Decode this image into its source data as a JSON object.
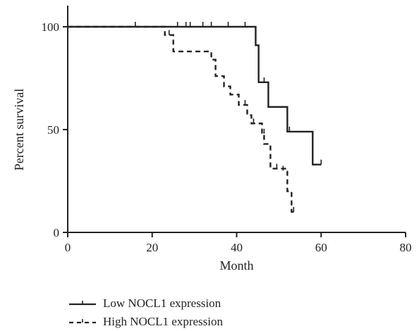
{
  "chart_data": {
    "type": "line",
    "chart_style": "kaplan-meier step survival curve",
    "title": "",
    "xlabel": "Month",
    "ylabel": "Percent survival",
    "xlim": [
      0,
      80
    ],
    "ylim": [
      0,
      100
    ],
    "x_ticks": [
      0,
      20,
      40,
      60,
      80
    ],
    "y_ticks": [
      0,
      50,
      100
    ],
    "grid": false,
    "legend_position": "bottom-left, below plot",
    "series": [
      {
        "name": "Low NOCL1 expression",
        "line_style": "solid",
        "color": "#222222",
        "steps": [
          [
            0,
            100
          ],
          [
            44.5,
            100
          ],
          [
            44.5,
            91
          ],
          [
            45.2,
            91
          ],
          [
            45.2,
            73
          ],
          [
            47.5,
            73
          ],
          [
            47.5,
            61
          ],
          [
            52,
            61
          ],
          [
            52,
            49
          ],
          [
            58,
            49
          ],
          [
            58,
            33
          ],
          [
            60,
            33
          ]
        ],
        "censored": [
          [
            16,
            100
          ],
          [
            26,
            100
          ],
          [
            28,
            100
          ],
          [
            29,
            100
          ],
          [
            32,
            100
          ],
          [
            34,
            100
          ],
          [
            38,
            100
          ],
          [
            42,
            100
          ],
          [
            46.5,
            73
          ],
          [
            52.5,
            49
          ],
          [
            60,
            33
          ]
        ]
      },
      {
        "name": "High NOCL1 expression",
        "line_style": "dashed",
        "color": "#222222",
        "steps": [
          [
            0,
            100
          ],
          [
            23,
            100
          ],
          [
            23,
            96
          ],
          [
            25,
            96
          ],
          [
            25,
            88
          ],
          [
            34,
            88
          ],
          [
            34,
            84
          ],
          [
            35,
            84
          ],
          [
            35,
            76
          ],
          [
            37,
            76
          ],
          [
            37,
            71
          ],
          [
            38.5,
            71
          ],
          [
            38.5,
            67
          ],
          [
            40.5,
            67
          ],
          [
            40.5,
            62
          ],
          [
            42.5,
            62
          ],
          [
            42.5,
            57
          ],
          [
            43.5,
            57
          ],
          [
            43.5,
            53
          ],
          [
            46,
            53
          ],
          [
            46,
            48
          ],
          [
            46.5,
            48
          ],
          [
            46.5,
            43
          ],
          [
            48,
            43
          ],
          [
            48,
            31
          ],
          [
            51.5,
            31
          ],
          [
            51.5,
            30
          ],
          [
            52,
            30
          ],
          [
            52,
            20
          ],
          [
            53,
            20
          ],
          [
            53,
            10
          ],
          [
            54,
            10
          ]
        ],
        "censored": [
          [
            24,
            96
          ],
          [
            42,
            62
          ],
          [
            44,
            53
          ],
          [
            46.5,
            48
          ],
          [
            49.5,
            31
          ],
          [
            51,
            30
          ],
          [
            53.5,
            10
          ]
        ]
      }
    ]
  },
  "legend": {
    "items": [
      {
        "label": "Low NOCL1 expression",
        "style": "solid"
      },
      {
        "label": "High NOCL1 expression",
        "style": "dashed"
      }
    ]
  }
}
